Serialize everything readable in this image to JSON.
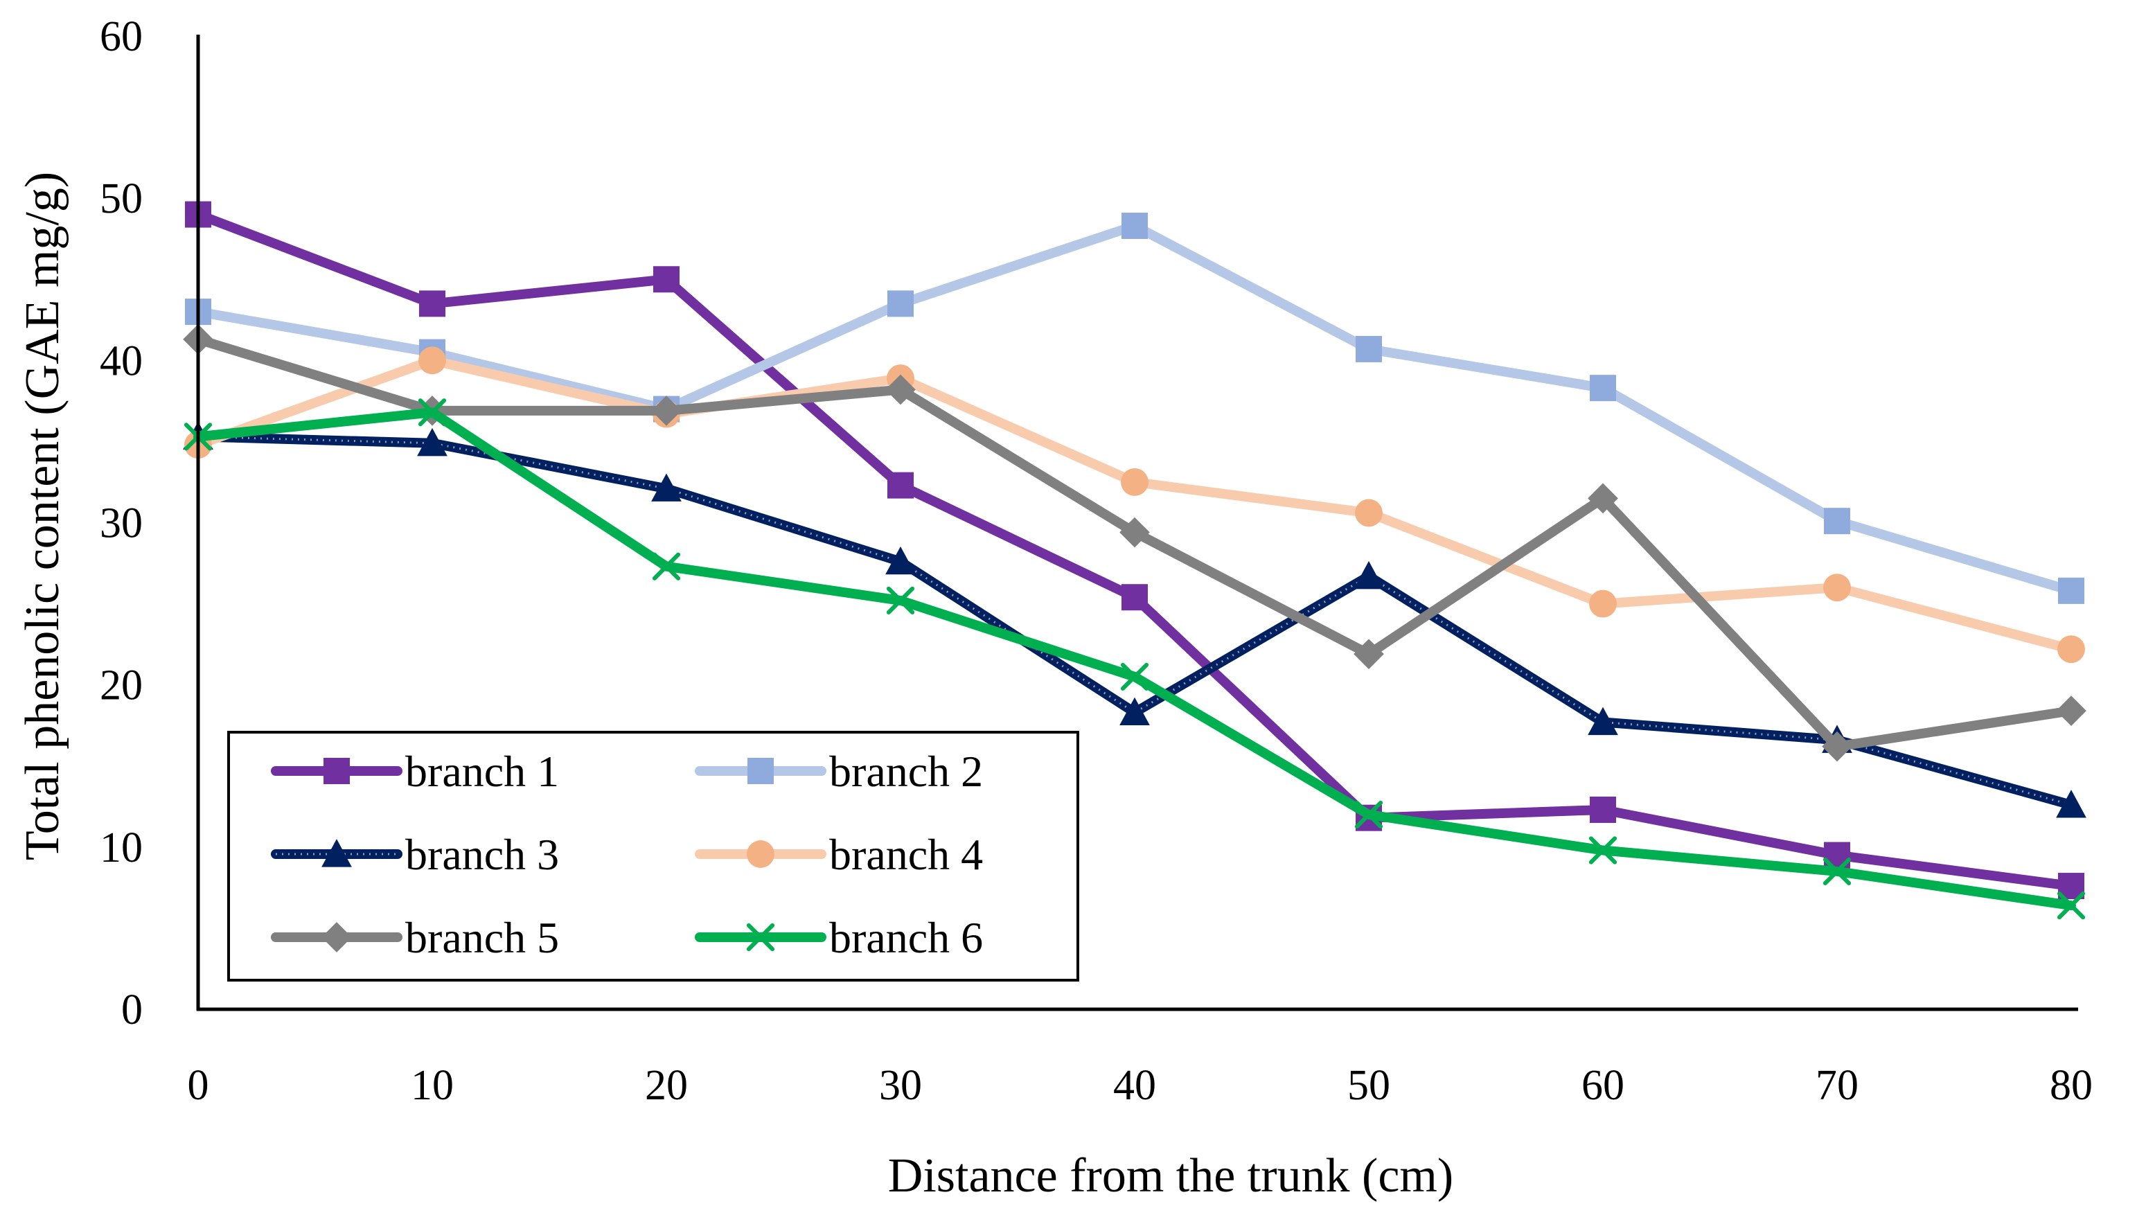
{
  "chart_data": {
    "type": "line",
    "title": "",
    "xlabel": "Distance from the trunk (cm)",
    "ylabel": "Total phenolic content (GAE mg/g)",
    "x": [
      0,
      10,
      20,
      30,
      40,
      50,
      60,
      70,
      80
    ],
    "xticks": [
      "0",
      "10",
      "20",
      "30",
      "40",
      "50",
      "60",
      "70",
      "80"
    ],
    "yticks": [
      "0",
      "10",
      "20",
      "30",
      "40",
      "50",
      "60"
    ],
    "xlim": [
      0,
      80
    ],
    "ylim": [
      0,
      60
    ],
    "grid": false,
    "legend_position": "bottom-left",
    "series": [
      {
        "name": "branch 1",
        "color": "#7030A0",
        "marker": "square",
        "dotted": false,
        "values": [
          49,
          43.5,
          45,
          32.3,
          25.4,
          11.8,
          12.3,
          9.5,
          7.6
        ]
      },
      {
        "name": "branch 2",
        "color": "#B4C7E7",
        "markerColor": "#8FAADC",
        "marker": "square",
        "dotted": false,
        "values": [
          43,
          40.5,
          37,
          43.5,
          48.3,
          40.7,
          38.3,
          30.1,
          25.8
        ]
      },
      {
        "name": "branch 3",
        "color": "#002060",
        "marker": "triangle",
        "dotted": true,
        "values": [
          35.3,
          34.9,
          32.1,
          27.6,
          18.3,
          26.7,
          17.7,
          16.6,
          12.6
        ]
      },
      {
        "name": "branch 4",
        "color": "#F8CBAD",
        "markerColor": "#F4B183",
        "marker": "circle",
        "dotted": false,
        "values": [
          34.8,
          40,
          36.7,
          38.9,
          32.5,
          30.6,
          25,
          26,
          22.2
        ]
      },
      {
        "name": "branch 5",
        "color": "#808080",
        "marker": "diamond",
        "dotted": false,
        "values": [
          41.3,
          36.9,
          36.9,
          38.2,
          29.4,
          21.9,
          31.5,
          16.2,
          18.4
        ]
      },
      {
        "name": "branch 6",
        "color": "#00B050",
        "marker": "x",
        "dotted": false,
        "values": [
          35.3,
          36.8,
          27.3,
          25.2,
          20.5,
          12,
          9.8,
          8.5,
          6.4
        ]
      }
    ]
  }
}
